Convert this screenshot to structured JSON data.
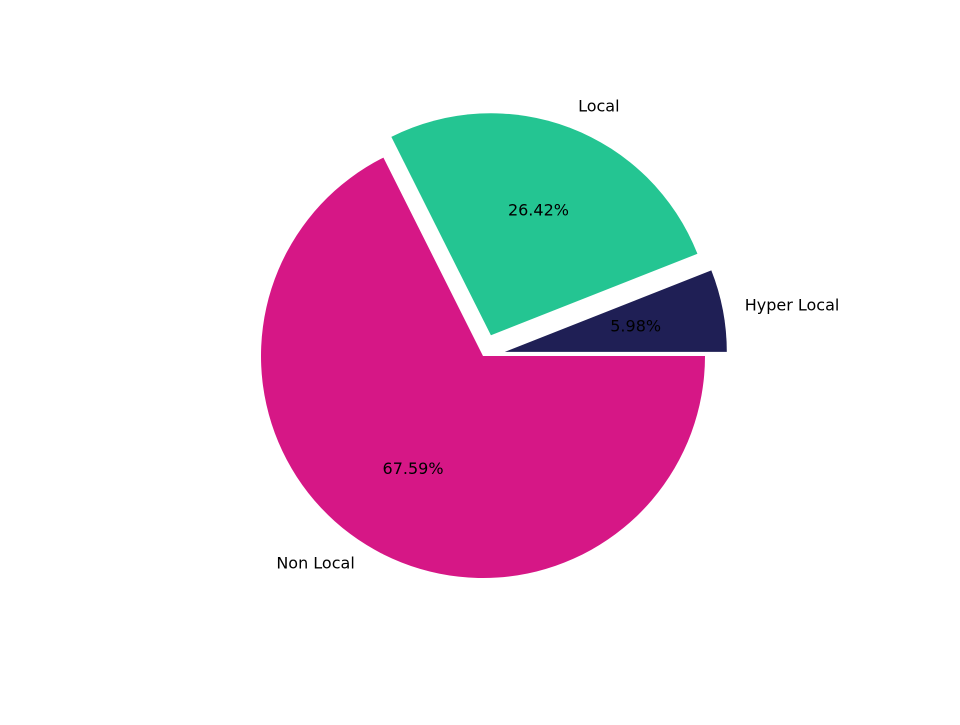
{
  "chart_data": {
    "type": "pie",
    "title": "",
    "slices": [
      {
        "label": "Hyper Local",
        "value": 5.98,
        "pct_label": "5.98%",
        "color": "#1f1f55",
        "exploded": true
      },
      {
        "label": "Local",
        "value": 26.42,
        "pct_label": "26.42%",
        "color": "#24c592",
        "exploded": true
      },
      {
        "label": "Non Local",
        "value": 67.59,
        "pct_label": "67.59%",
        "color": "#d61786",
        "exploded": false
      }
    ],
    "start_angle_deg": 0,
    "direction": "counterclockwise",
    "legend": "none"
  }
}
